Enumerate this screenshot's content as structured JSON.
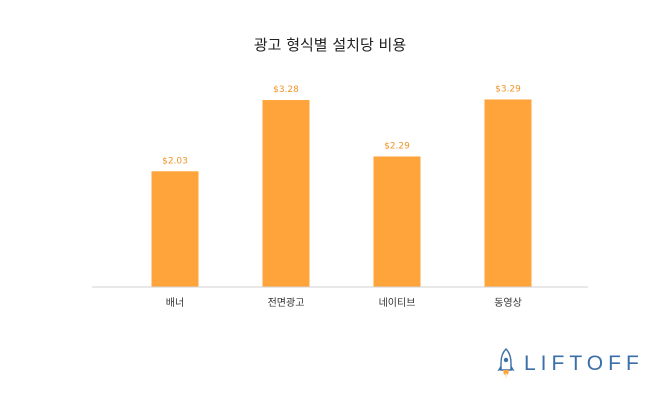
{
  "colors": {
    "bar": "#ffa43a",
    "bar_label": "#f0952a",
    "axis": "#d0d0d0",
    "logo": "#3a6fa8"
  },
  "logo": {
    "text": "LIFTOFF",
    "icon": "rocket-icon"
  },
  "chart_data": {
    "type": "bar",
    "title": "광고 형식별 설치당 비용",
    "xlabel": "",
    "ylabel": "",
    "categories": [
      "배너",
      "전면광고",
      "네이티브",
      "동영상"
    ],
    "values": [
      2.03,
      3.28,
      2.29,
      3.29
    ],
    "value_labels": [
      "$2.03",
      "$3.28",
      "$2.29",
      "$3.29"
    ],
    "ylim": [
      0,
      3.5
    ],
    "grid": false,
    "legend": "none"
  }
}
